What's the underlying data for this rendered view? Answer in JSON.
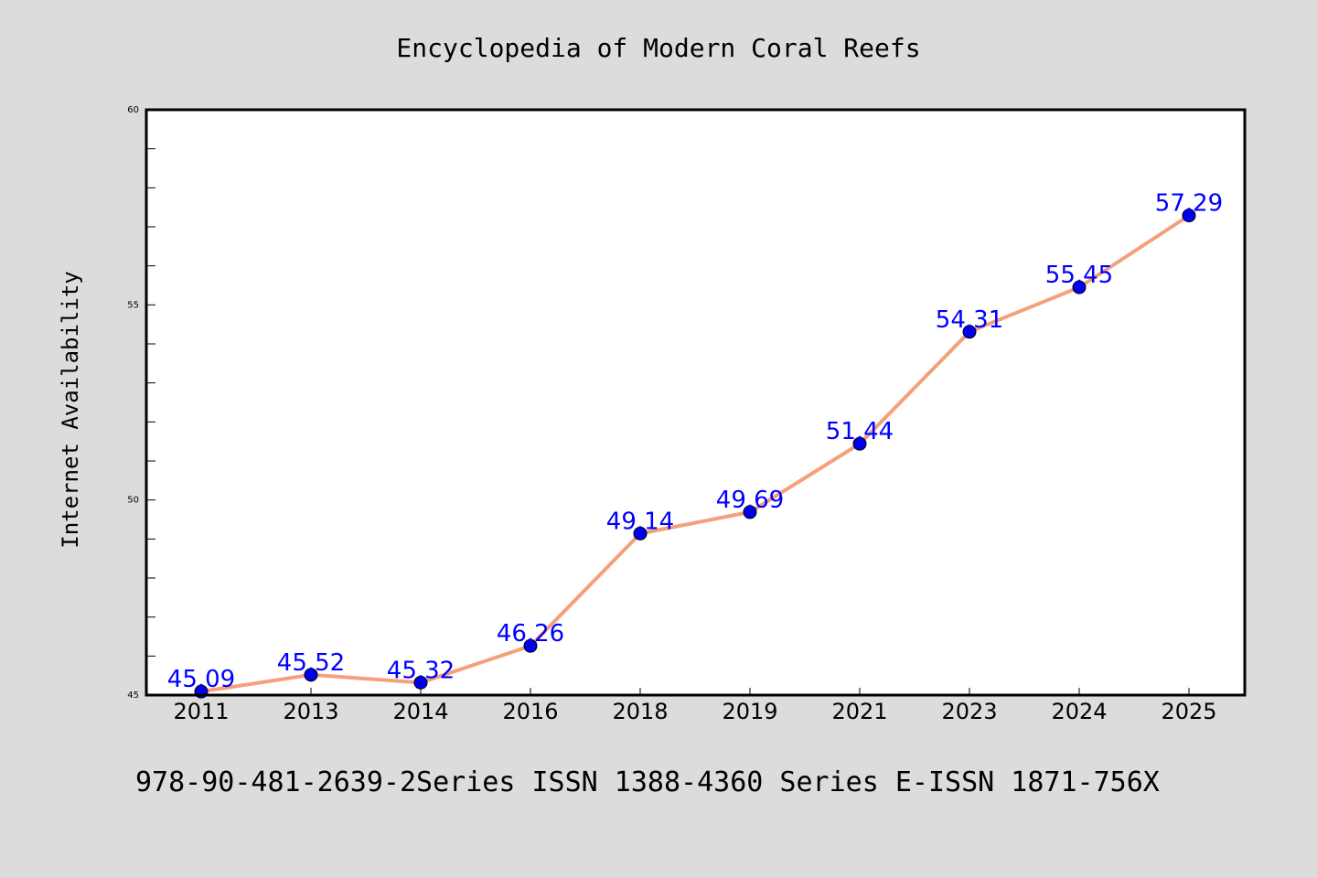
{
  "chart_data": {
    "type": "line",
    "title": "Encyclopedia of Modern Coral Reefs",
    "xlabel": "",
    "ylabel": "Internet Availability",
    "categories": [
      "2011",
      "2013",
      "2014",
      "2016",
      "2018",
      "2019",
      "2021",
      "2023",
      "2024",
      "2025"
    ],
    "series": [
      {
        "values": [
          45.09,
          45.52,
          45.32,
          46.26,
          49.14,
          49.69,
          51.44,
          54.31,
          55.45,
          57.29
        ],
        "data_labels": [
          "45.09",
          "45.52",
          "45.32",
          "46.26",
          "49.14",
          "49.69",
          "51.44",
          "54.31",
          "55.45",
          "57.29"
        ],
        "line_color": "#f4a07a",
        "marker_color": "#0000ee",
        "label_color": "#0000ff"
      }
    ],
    "ylim": [
      45,
      60
    ],
    "yticks": [
      "45",
      "50",
      "55",
      "60"
    ],
    "ytick_values": [
      45,
      50,
      55,
      60
    ],
    "minor_yticks_per_major": 5,
    "grid": false,
    "legend": "none"
  },
  "footer": "978-90-481-2639-2Series ISSN 1388-4360 Series E-ISSN 1871-756X",
  "colors": {
    "background": "#dcdcdc",
    "plot_background": "#ffffff",
    "axes_frame": "#000000"
  }
}
